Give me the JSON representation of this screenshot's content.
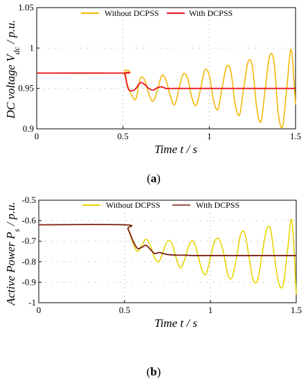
{
  "chart_data": [
    {
      "type": "line",
      "ylabel": "DC voltage V_dc / p.u.",
      "ylabel_main": "DC voltage V",
      "ylabel_sub": "dc",
      "ylabel_tail": " / p.u.",
      "xlabel": "Time t / s",
      "caption_letter": "a",
      "xlim": [
        0,
        1.5
      ],
      "ylim": [
        0.9,
        1.05
      ],
      "xticks": [
        0,
        0.5,
        1,
        1.5
      ],
      "xtick_labels": [
        "0",
        "0.5",
        "1",
        "1.5"
      ],
      "yticks": [
        0.9,
        0.95,
        1,
        1.05
      ],
      "ytick_labels": [
        "0.9",
        "0.95",
        "1",
        "1.05"
      ],
      "grid": "dotted",
      "legend_position": "top",
      "series": [
        {
          "name": "Without DCPSS",
          "color": "#f2b705",
          "x": [
            0,
            0.5,
            0.51,
            0.525,
            0.55,
            0.575,
            0.6,
            0.625,
            0.65,
            0.675,
            0.7,
            0.725,
            0.75,
            0.775,
            0.8,
            0.825,
            0.85,
            0.875,
            0.9,
            0.925,
            0.95,
            0.975,
            1.0,
            1.025,
            1.05,
            1.075,
            1.1,
            1.125,
            1.15,
            1.175,
            1.2,
            1.225,
            1.25,
            1.275,
            1.3,
            1.325,
            1.35,
            1.375,
            1.4,
            1.425,
            1.45,
            1.475,
            1.5
          ],
          "y": [
            0.969,
            0.969,
            0.972,
            0.955,
            0.942,
            0.937,
            0.962,
            0.961,
            0.943,
            0.934,
            0.948,
            0.966,
            0.96,
            0.94,
            0.93,
            0.95,
            0.968,
            0.962,
            0.938,
            0.929,
            0.95,
            0.973,
            0.966,
            0.935,
            0.924,
            0.951,
            0.977,
            0.971,
            0.931,
            0.917,
            0.951,
            0.983,
            0.977,
            0.926,
            0.909,
            0.951,
            0.99,
            0.983,
            0.919,
            0.903,
            0.952,
            0.998,
            0.93
          ]
        },
        {
          "name": "With DCPSS",
          "color": "#e8121a",
          "x": [
            0,
            0.5,
            0.51,
            0.53,
            0.55,
            0.575,
            0.6,
            0.625,
            0.65,
            0.675,
            0.7,
            0.725,
            0.75,
            0.8,
            0.9,
            1.0,
            1.5
          ],
          "y": [
            0.969,
            0.969,
            0.968,
            0.95,
            0.947,
            0.95,
            0.957,
            0.955,
            0.95,
            0.948,
            0.951,
            0.952,
            0.95,
            0.95,
            0.95,
            0.95,
            0.95
          ]
        }
      ]
    },
    {
      "type": "line",
      "ylabel": "Active Power P_s / p.u.",
      "ylabel_main": "Active Power P",
      "ylabel_sub": "s",
      "ylabel_tail": " / p.u.",
      "xlabel": "Time t / s",
      "caption_letter": "b",
      "xlim": [
        0,
        1.5
      ],
      "ylim": [
        -1,
        -0.5
      ],
      "xticks": [
        0,
        0.5,
        1,
        1.5
      ],
      "xtick_labels": [
        "0",
        "0.5",
        "1",
        "1.5"
      ],
      "yticks": [
        -1,
        -0.9,
        -0.8,
        -0.7,
        -0.6,
        -0.5
      ],
      "ytick_labels": [
        "-1",
        "-0.9",
        "-0.8",
        "-0.7",
        "-0.6",
        "-0.5"
      ],
      "grid": "dotted",
      "legend_position": "top",
      "series": [
        {
          "name": "Without DCPSS",
          "color": "#e6d400",
          "x": [
            0,
            0.5,
            0.52,
            0.55,
            0.575,
            0.6,
            0.625,
            0.65,
            0.675,
            0.7,
            0.725,
            0.75,
            0.775,
            0.8,
            0.825,
            0.85,
            0.875,
            0.9,
            0.925,
            0.95,
            0.975,
            1.0,
            1.025,
            1.05,
            1.075,
            1.1,
            1.125,
            1.15,
            1.175,
            1.2,
            1.225,
            1.25,
            1.275,
            1.3,
            1.325,
            1.35,
            1.375,
            1.4,
            1.425,
            1.45,
            1.475,
            1.5
          ],
          "y": [
            -0.62,
            -0.62,
            -0.64,
            -0.71,
            -0.75,
            -0.72,
            -0.69,
            -0.72,
            -0.78,
            -0.8,
            -0.75,
            -0.7,
            -0.71,
            -0.78,
            -0.83,
            -0.79,
            -0.72,
            -0.7,
            -0.76,
            -0.84,
            -0.86,
            -0.78,
            -0.7,
            -0.69,
            -0.75,
            -0.86,
            -0.88,
            -0.79,
            -0.67,
            -0.66,
            -0.78,
            -0.89,
            -0.89,
            -0.77,
            -0.65,
            -0.64,
            -0.79,
            -0.91,
            -0.91,
            -0.74,
            -0.6,
            -0.96
          ]
        },
        {
          "name": "With DCPSS",
          "color": "#7a1f12",
          "x": [
            0,
            0.5,
            0.52,
            0.55,
            0.575,
            0.6,
            0.625,
            0.65,
            0.675,
            0.7,
            0.725,
            0.75,
            0.8,
            0.85,
            0.9,
            1.0,
            1.5
          ],
          "y": [
            -0.62,
            -0.62,
            -0.64,
            -0.7,
            -0.735,
            -0.73,
            -0.72,
            -0.74,
            -0.76,
            -0.755,
            -0.76,
            -0.765,
            -0.768,
            -0.768,
            -0.77,
            -0.77,
            -0.77
          ]
        }
      ]
    }
  ]
}
